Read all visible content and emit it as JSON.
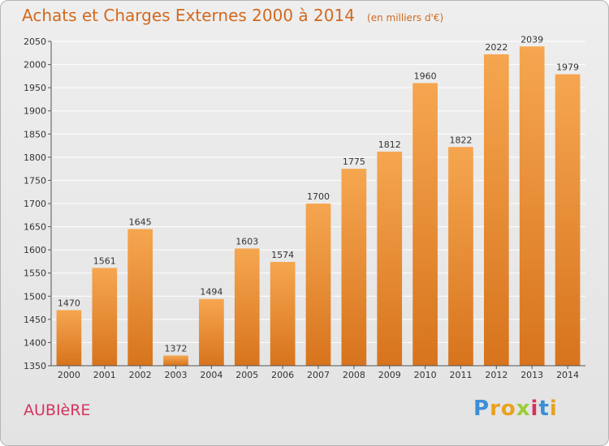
{
  "header": {
    "title": "Achats et Charges Externes 2000 à 2014",
    "subtitle": "(en milliers d'€)"
  },
  "footer": {
    "commune": "AUBIèRE",
    "logo_letters": [
      "P",
      "r",
      "o",
      "x",
      "i",
      "t",
      "i"
    ],
    "logo_colors": [
      "#3b8fd6",
      "#e8a21c",
      "#e8a21c",
      "#9acd32",
      "#d6335f",
      "#3b8fd6",
      "#e8a21c"
    ]
  },
  "colors": {
    "bar_light": "#f6a650",
    "bar_dark": "#d7741d",
    "grid": "#ffffff",
    "axis": "#555555"
  },
  "chart_data": {
    "type": "bar",
    "title": "Achats et Charges Externes 2000 à 2014",
    "subtitle": "(en milliers d'€)",
    "categories": [
      "2000",
      "2001",
      "2002",
      "2003",
      "2004",
      "2005",
      "2006",
      "2007",
      "2008",
      "2009",
      "2010",
      "2011",
      "2012",
      "2013",
      "2014"
    ],
    "values": [
      1470,
      1561,
      1645,
      1372,
      1494,
      1603,
      1574,
      1700,
      1775,
      1812,
      1960,
      1822,
      2022,
      2039,
      1979
    ],
    "ylim": [
      1350,
      2050
    ],
    "yticks": [
      1350,
      1400,
      1450,
      1500,
      1550,
      1600,
      1650,
      1700,
      1750,
      1800,
      1850,
      1900,
      1950,
      2000,
      2050
    ],
    "grid": true,
    "xlabel": "",
    "ylabel": ""
  }
}
